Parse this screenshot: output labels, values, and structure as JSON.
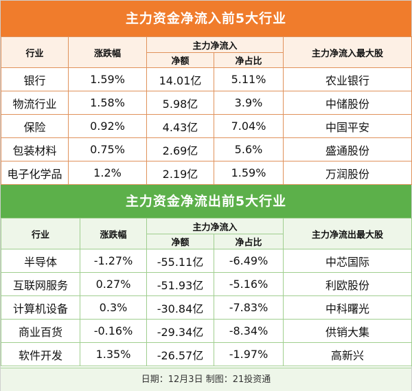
{
  "inflow": {
    "title": "主力资金净流入前5大行业",
    "headers": {
      "industry": "行业",
      "change": "涨跌幅",
      "net_flow_group": "主力净流入",
      "net_amount": "净额",
      "net_ratio": "净占比",
      "top_stock": "主力净流入最大股"
    },
    "rows": [
      {
        "industry": "银行",
        "change": "1.59%",
        "amount": "14.01亿",
        "ratio": "5.11%",
        "stock": "农业银行"
      },
      {
        "industry": "物流行业",
        "change": "1.58%",
        "amount": "5.98亿",
        "ratio": "3.9%",
        "stock": "中储股份"
      },
      {
        "industry": "保险",
        "change": "0.92%",
        "amount": "4.43亿",
        "ratio": "7.04%",
        "stock": "中国平安"
      },
      {
        "industry": "包装材料",
        "change": "0.75%",
        "amount": "2.69亿",
        "ratio": "5.6%",
        "stock": "盛通股份"
      },
      {
        "industry": "电子化学品",
        "change": "1.2%",
        "amount": "2.19亿",
        "ratio": "1.59%",
        "stock": "万润股份"
      }
    ]
  },
  "outflow": {
    "title": "主力资金净流出前5大行业",
    "headers": {
      "industry": "行业",
      "change": "涨跌幅",
      "net_flow_group": "主力净流入",
      "net_amount": "净额",
      "net_ratio": "净占比",
      "top_stock": "主力净流出最大股"
    },
    "rows": [
      {
        "industry": "半导体",
        "change": "-1.27%",
        "amount": "-55.11亿",
        "ratio": "-6.49%",
        "stock": "中芯国际"
      },
      {
        "industry": "互联网服务",
        "change": "0.27%",
        "amount": "-51.93亿",
        "ratio": "-5.16%",
        "stock": "利欧股份"
      },
      {
        "industry": "计算机设备",
        "change": "0.3%",
        "amount": "-30.84亿",
        "ratio": "-7.83%",
        "stock": "中科曙光"
      },
      {
        "industry": "商业百货",
        "change": "-0.16%",
        "amount": "-29.34亿",
        "ratio": "-8.34%",
        "stock": "供销大集"
      },
      {
        "industry": "软件开发",
        "change": "1.35%",
        "amount": "-26.57亿",
        "ratio": "-1.97%",
        "stock": "高新兴"
      }
    ]
  },
  "footer": "日期：12月3日 制图：21投资通",
  "colors": {
    "inflow_banner": "#f07c2c",
    "outflow_banner": "#5cb04a"
  }
}
